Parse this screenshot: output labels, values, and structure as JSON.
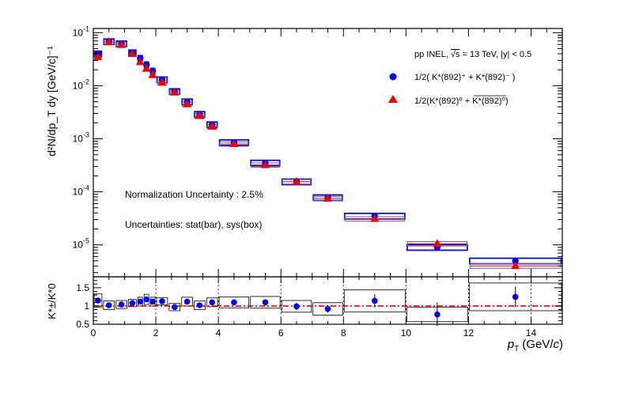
{
  "chart_data": [
    {
      "type": "scatter",
      "panel": "upper",
      "ylabel": "d²N/dp_T dy [GeV/c]⁻¹",
      "yscale": "log",
      "xlim": [
        0,
        15
      ],
      "ylim": [
        2.5e-06,
        0.12
      ],
      "ytick_labels": [
        {
          "value": 0.1,
          "base": "10",
          "exp": "-1"
        },
        {
          "value": 0.01,
          "base": "10",
          "exp": "-2"
        },
        {
          "value": 0.001,
          "base": "10",
          "exp": "-3"
        },
        {
          "value": 0.0001,
          "base": "10",
          "exp": "-4"
        },
        {
          "value": 1e-05,
          "base": "10",
          "exp": "-5"
        }
      ],
      "legend": {
        "header_pre": "pp INEL, ",
        "header_sqrt": "√s",
        "header_post": " = 13 TeV, |y| < 0.5",
        "entry1": "1/2( K*(892)⁺ + K*(892)⁻ )",
        "entry2": "1/2(K*(892)⁰ + K*(892)⁰)",
        "placement": "top-right"
      },
      "annotations": {
        "norm": "Normalization Uncertainty : 2.5%",
        "unc": "Uncertainties: stat(bar), sys(box)"
      },
      "bins": [
        {
          "lo": 0.0,
          "hi": 0.3,
          "x": 0.15,
          "charged": 0.04,
          "neutral": 0.035
        },
        {
          "lo": 0.3,
          "hi": 0.7,
          "x": 0.5,
          "charged": 0.068,
          "neutral": 0.067
        },
        {
          "lo": 0.7,
          "hi": 1.1,
          "x": 0.9,
          "charged": 0.062,
          "neutral": 0.059
        },
        {
          "lo": 1.1,
          "hi": 1.4,
          "x": 1.25,
          "charged": 0.042,
          "neutral": 0.04
        },
        {
          "lo": 1.4,
          "hi": 1.6,
          "x": 1.5,
          "charged": 0.033,
          "neutral": 0.028
        },
        {
          "lo": 1.6,
          "hi": 1.8,
          "x": 1.7,
          "charged": 0.025,
          "neutral": 0.021
        },
        {
          "lo": 1.8,
          "hi": 2.0,
          "x": 1.9,
          "charged": 0.019,
          "neutral": 0.016
        },
        {
          "lo": 2.0,
          "hi": 2.4,
          "x": 2.2,
          "charged": 0.013,
          "neutral": 0.0115
        },
        {
          "lo": 2.4,
          "hi": 2.8,
          "x": 2.6,
          "charged": 0.0078,
          "neutral": 0.0075
        },
        {
          "lo": 2.8,
          "hi": 3.2,
          "x": 3.0,
          "charged": 0.005,
          "neutral": 0.0045
        },
        {
          "lo": 3.2,
          "hi": 3.6,
          "x": 3.4,
          "charged": 0.0029,
          "neutral": 0.0027
        },
        {
          "lo": 3.6,
          "hi": 4.0,
          "x": 3.8,
          "charged": 0.00185,
          "neutral": 0.0017
        },
        {
          "lo": 4.0,
          "hi": 5.0,
          "x": 4.5,
          "charged": 0.00085,
          "neutral": 0.0008
        },
        {
          "lo": 5.0,
          "hi": 6.0,
          "x": 5.5,
          "charged": 0.00035,
          "neutral": 0.00032
        },
        {
          "lo": 6.0,
          "hi": 7.0,
          "x": 6.5,
          "charged": 0.000155,
          "neutral": 0.000155
        },
        {
          "lo": 7.0,
          "hi": 8.0,
          "x": 7.5,
          "charged": 7.8e-05,
          "neutral": 7.5e-05
        },
        {
          "lo": 8.0,
          "hi": 10.0,
          "x": 9.0,
          "charged": 3.5e-05,
          "neutral": 3.1e-05
        },
        {
          "lo": 10.0,
          "hi": 12.0,
          "x": 11.0,
          "charged": 9e-06,
          "neutral": 1.05e-05
        },
        {
          "lo": 12.0,
          "hi": 15.0,
          "x": 13.5,
          "charged": 5e-06,
          "neutral": 4e-06
        }
      ],
      "sys_rel": 0.12,
      "colors": {
        "charged": "#0000ee",
        "neutral": "#ee0000",
        "box_charged": "#1010c0",
        "box_neutral": "#6060a0"
      }
    },
    {
      "type": "scatter",
      "panel": "ratio",
      "xlabel_main": "p",
      "xlabel_sub": "T",
      "xlabel_unit_pre": " (GeV/",
      "xlabel_unit_c": "c",
      "xlabel_unit_post": ")",
      "ylabel": "K*±/K*0",
      "ylim": [
        0.5,
        1.8
      ],
      "ytick_labels": [
        "0.5",
        "1",
        "1.5"
      ],
      "ytick_values": [
        0.5,
        1.0,
        1.5
      ],
      "xtick_labels": [
        "0",
        "2",
        "4",
        "6",
        "8",
        "10",
        "12",
        "14"
      ],
      "xtick_values": [
        0,
        2,
        4,
        6,
        8,
        10,
        12,
        14
      ],
      "grid_x": [
        2,
        4,
        6,
        8,
        10,
        12,
        14
      ],
      "grid_y": [
        1.0
      ],
      "reference": 1.0,
      "points": [
        {
          "lo": 0.0,
          "hi": 0.3,
          "x": 0.15,
          "y": 1.15,
          "stat": 0.06,
          "sys": 0.18
        },
        {
          "lo": 0.3,
          "hi": 0.7,
          "x": 0.5,
          "y": 1.02,
          "stat": 0.04,
          "sys": 0.12
        },
        {
          "lo": 0.7,
          "hi": 1.1,
          "x": 0.9,
          "y": 1.04,
          "stat": 0.04,
          "sys": 0.11
        },
        {
          "lo": 1.1,
          "hi": 1.4,
          "x": 1.25,
          "y": 1.08,
          "stat": 0.04,
          "sys": 0.1
        },
        {
          "lo": 1.4,
          "hi": 1.6,
          "x": 1.5,
          "y": 1.12,
          "stat": 0.04,
          "sys": 0.12
        },
        {
          "lo": 1.6,
          "hi": 1.8,
          "x": 1.7,
          "y": 1.18,
          "stat": 0.05,
          "sys": 0.14
        },
        {
          "lo": 1.8,
          "hi": 2.0,
          "x": 1.9,
          "y": 1.12,
          "stat": 0.05,
          "sys": 0.12
        },
        {
          "lo": 2.0,
          "hi": 2.4,
          "x": 2.2,
          "y": 1.13,
          "stat": 0.04,
          "sys": 0.1
        },
        {
          "lo": 2.4,
          "hi": 2.8,
          "x": 2.6,
          "y": 0.97,
          "stat": 0.05,
          "sys": 0.1
        },
        {
          "lo": 2.8,
          "hi": 3.2,
          "x": 3.0,
          "y": 1.12,
          "stat": 0.05,
          "sys": 0.12
        },
        {
          "lo": 3.2,
          "hi": 3.6,
          "x": 3.4,
          "y": 1.02,
          "stat": 0.06,
          "sys": 0.12
        },
        {
          "lo": 3.6,
          "hi": 4.0,
          "x": 3.8,
          "y": 1.1,
          "stat": 0.06,
          "sys": 0.12
        },
        {
          "lo": 4.0,
          "hi": 5.0,
          "x": 4.5,
          "y": 1.1,
          "stat": 0.06,
          "sys": 0.15
        },
        {
          "lo": 5.0,
          "hi": 6.0,
          "x": 5.5,
          "y": 1.1,
          "stat": 0.08,
          "sys": 0.16
        },
        {
          "lo": 6.0,
          "hi": 7.0,
          "x": 6.5,
          "y": 0.99,
          "stat": 0.1,
          "sys": 0.16
        },
        {
          "lo": 7.0,
          "hi": 8.0,
          "x": 7.5,
          "y": 0.92,
          "stat": 0.1,
          "sys": 0.17
        },
        {
          "lo": 8.0,
          "hi": 10.0,
          "x": 9.0,
          "y": 1.14,
          "stat": 0.18,
          "sys": 0.3
        },
        {
          "lo": 10.0,
          "hi": 12.0,
          "x": 11.0,
          "y": 0.77,
          "stat": 0.32,
          "sys": 0.2
        },
        {
          "lo": 12.0,
          "hi": 15.0,
          "x": 13.5,
          "y": 1.25,
          "stat": 0.28,
          "sys": 0.38
        }
      ],
      "colors": {
        "point": "#0000ee",
        "box": "#000000",
        "ref": "#ee0000"
      }
    }
  ]
}
